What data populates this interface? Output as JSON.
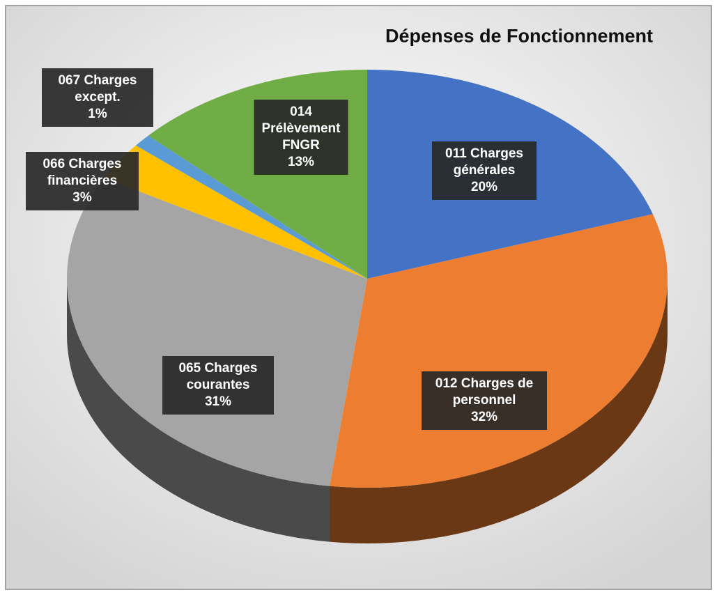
{
  "chart_data": {
    "type": "pie",
    "title": "Dépenses de Fonctionnement",
    "categories": [
      "011 Charges générales",
      "012 Charges de personnel",
      "065 Charges courantes",
      "066 Charges financières",
      "067 Charges except.",
      "014 Prélèvement FNGR"
    ],
    "values": [
      20,
      32,
      31,
      3,
      1,
      13
    ],
    "value_labels": [
      "20%",
      "32%",
      "31%",
      "3%",
      "1%",
      "13%"
    ],
    "colors": [
      "#4472c4",
      "#ed7d31",
      "#a5a5a5",
      "#ffc000",
      "#5b9bd5",
      "#70ad47"
    ]
  }
}
